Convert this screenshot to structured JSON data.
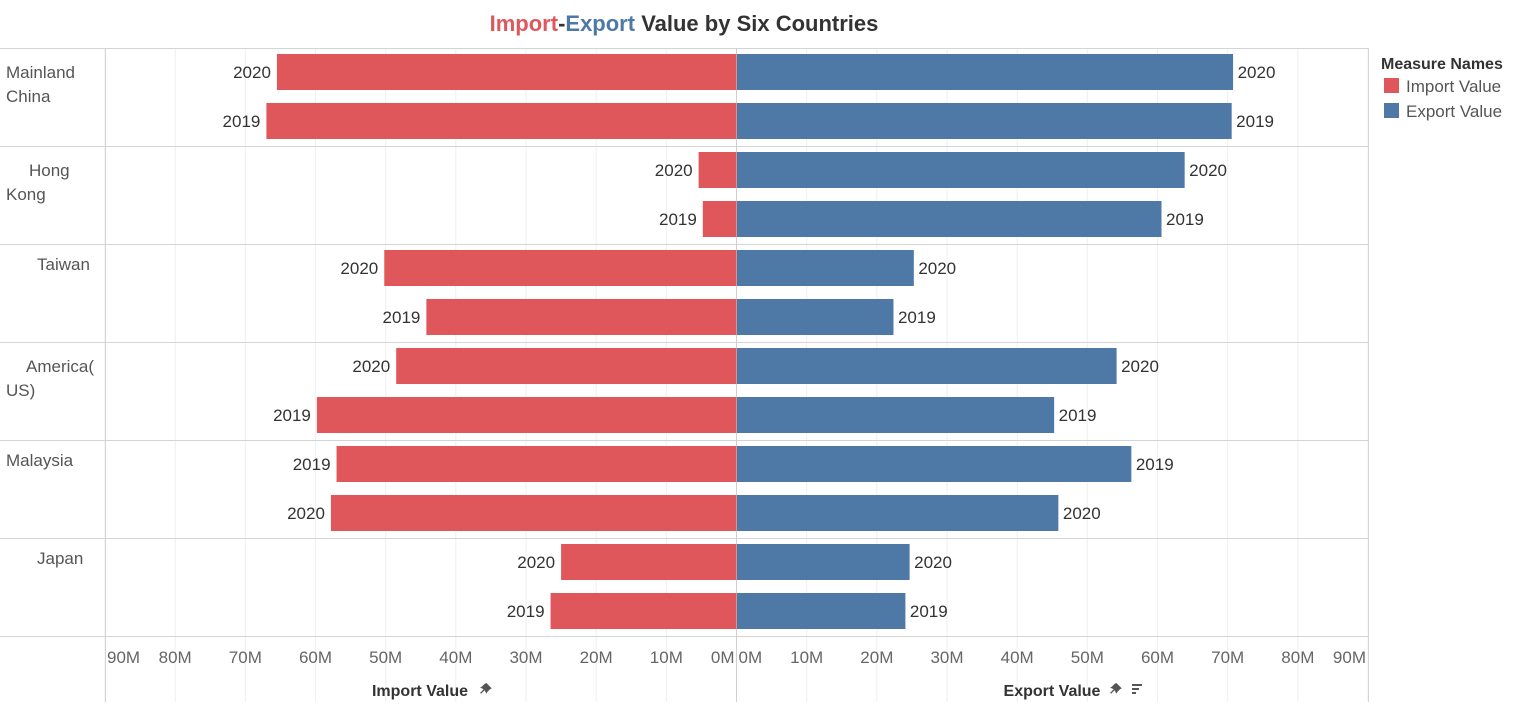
{
  "title": {
    "part1": "Import",
    "sep": "-",
    "part2": "Export",
    "rest": " Value by Six Countries"
  },
  "legend": {
    "title": "Measure Names",
    "items": [
      {
        "label": "Import Value",
        "color": "#e0575b"
      },
      {
        "label": "Export Value",
        "color": "#4e79a7"
      }
    ]
  },
  "axis_icons": {
    "pin": "pin-icon",
    "sort": "sort-icon"
  },
  "chart_data": {
    "type": "bar",
    "orientation": "horizontal-diverging",
    "title": "Import-Export Value by Six Countries",
    "left_axis": {
      "label": "Import Value",
      "range": [
        90000000,
        0
      ],
      "ticks": [
        "90M",
        "80M",
        "70M",
        "60M",
        "50M",
        "40M",
        "30M",
        "20M",
        "10M",
        "0M"
      ]
    },
    "right_axis": {
      "label": "Export Value",
      "range": [
        0,
        90000000
      ],
      "ticks": [
        "0M",
        "10M",
        "20M",
        "30M",
        "40M",
        "50M",
        "60M",
        "70M",
        "80M",
        "90M"
      ]
    },
    "groups": [
      {
        "name": "Mainland China",
        "lines": [
          "Mainland",
          "China"
        ],
        "rows": [
          {
            "year": "2020",
            "import": 65500000,
            "export": 70700000
          },
          {
            "year": "2019",
            "import": 67000000,
            "export": 70500000
          }
        ]
      },
      {
        "name": "Hong Kong",
        "lines": [
          "Hong",
          "Kong"
        ],
        "rows": [
          {
            "year": "2020",
            "import": 5400000,
            "export": 63800000
          },
          {
            "year": "2019",
            "import": 4800000,
            "export": 60500000
          }
        ]
      },
      {
        "name": "Taiwan",
        "lines": [
          "Taiwan"
        ],
        "rows": [
          {
            "year": "2020",
            "import": 50200000,
            "export": 25200000
          },
          {
            "year": "2019",
            "import": 44200000,
            "export": 22300000
          }
        ]
      },
      {
        "name": "America(US)",
        "lines": [
          "America(",
          "US)"
        ],
        "rows": [
          {
            "year": "2020",
            "import": 48500000,
            "export": 54100000
          },
          {
            "year": "2019",
            "import": 59800000,
            "export": 45200000
          }
        ]
      },
      {
        "name": "Malaysia",
        "lines": [
          "Malaysia"
        ],
        "rows": [
          {
            "year": "2019",
            "import": 57000000,
            "export": 56200000
          },
          {
            "year": "2020",
            "import": 57800000,
            "export": 45800000
          }
        ]
      },
      {
        "name": "Japan",
        "lines": [
          "Japan"
        ],
        "rows": [
          {
            "year": "2020",
            "import": 25000000,
            "export": 24600000
          },
          {
            "year": "2019",
            "import": 26500000,
            "export": 24000000
          }
        ]
      }
    ],
    "series": [
      {
        "name": "Import Value",
        "color": "#e0575b"
      },
      {
        "name": "Export Value",
        "color": "#4e79a7"
      }
    ],
    "grid": true,
    "legend_position": "top-right"
  }
}
